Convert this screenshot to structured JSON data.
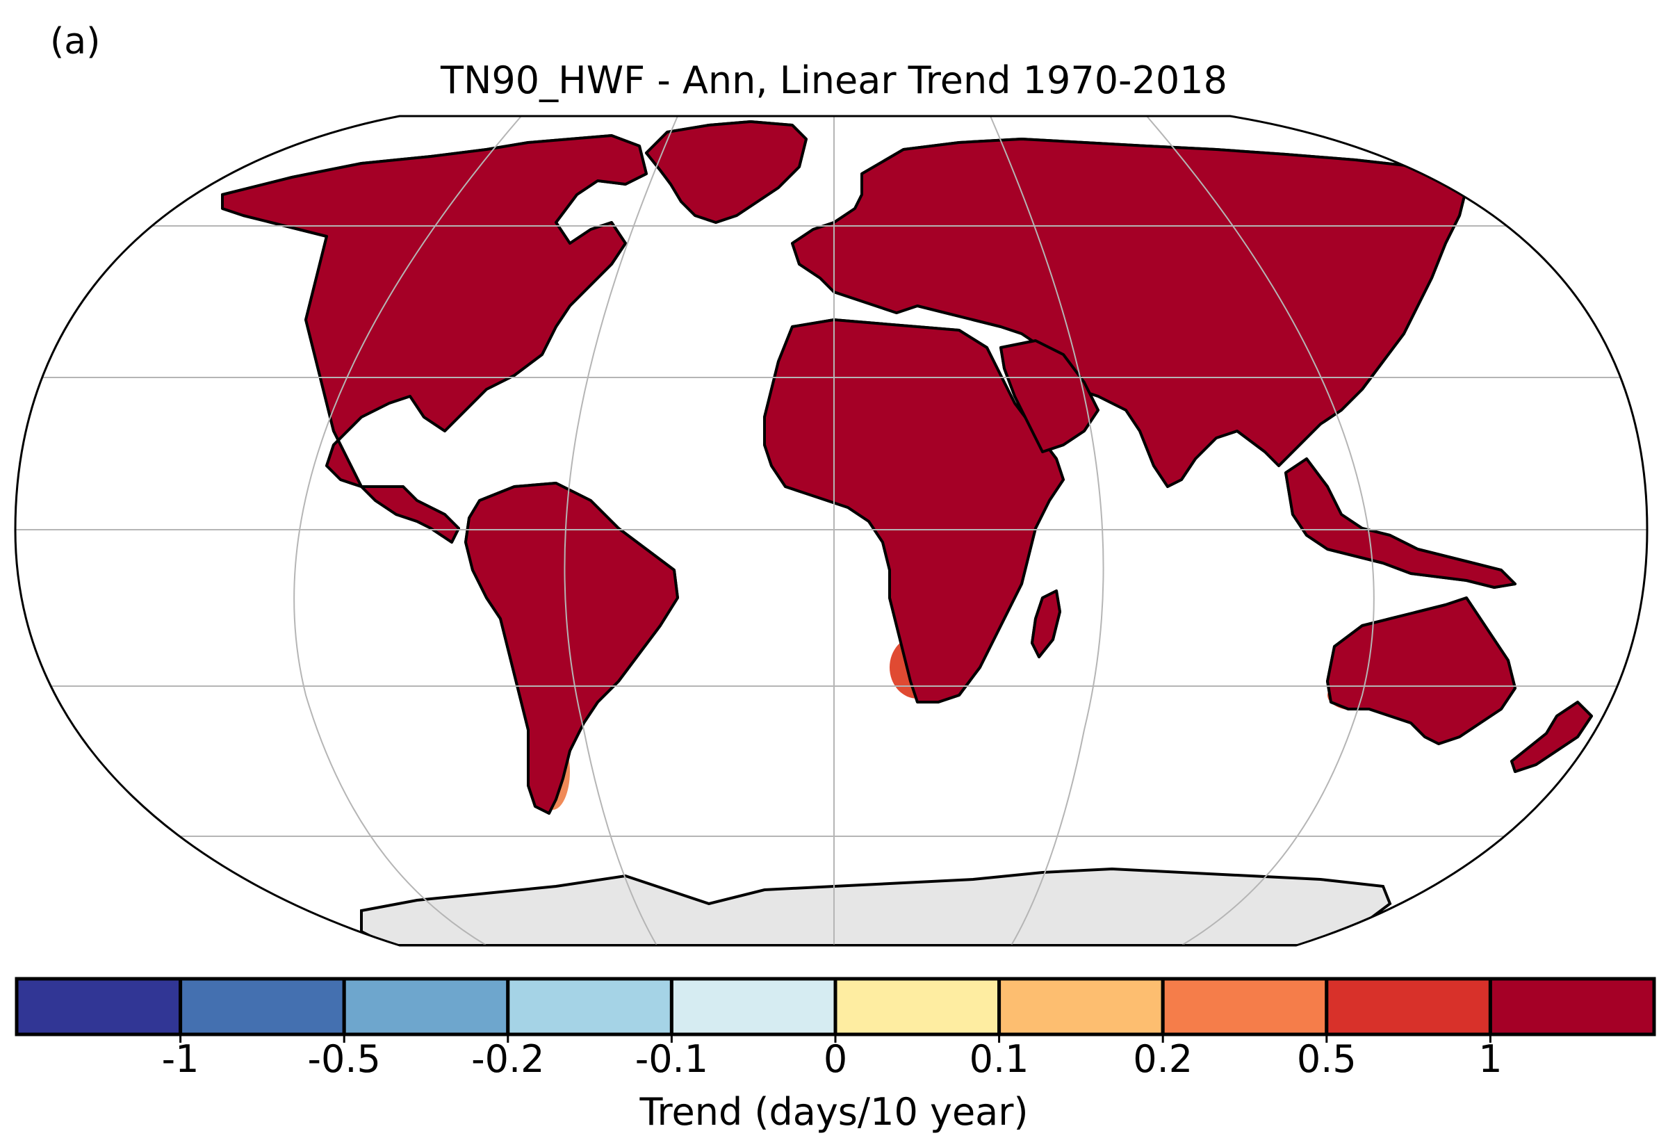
{
  "panel_label": "(a)",
  "title": "TN90_HWF - Ann, Linear Trend 1970-2018",
  "colorbar": {
    "label": "Trend (days/10 year)",
    "bins": [
      {
        "color": "#313695"
      },
      {
        "color": "#4470b0"
      },
      {
        "color": "#6ea6cd"
      },
      {
        "color": "#a5d3e6"
      },
      {
        "color": "#d6ecf2"
      },
      {
        "color": "#feeda1"
      },
      {
        "color": "#fdbe70"
      },
      {
        "color": "#f57d4a"
      },
      {
        "color": "#d8312a"
      },
      {
        "color": "#a50026"
      }
    ],
    "ticks": [
      "-1",
      "-0.5",
      "-0.2",
      "-0.1",
      "0",
      "0.1",
      "0.2",
      "0.5",
      "1"
    ]
  },
  "colors": {
    "dominant_land": "#a50026",
    "warm_patch": "#e04a32",
    "light_warm_patch": "#f08a58",
    "missing": "#e0e0e0",
    "antarctica": "#e6e6e6",
    "graticule": "#b5b5b5",
    "coast": "#000000"
  },
  "map": {
    "projection": "Robinson",
    "stippling": "significant trend (dots)",
    "regions": [
      "north-america",
      "greenland",
      "south-america",
      "eurasia",
      "africa",
      "arabia",
      "india",
      "southeast-asia",
      "australia",
      "new-zealand",
      "antarctica"
    ]
  }
}
